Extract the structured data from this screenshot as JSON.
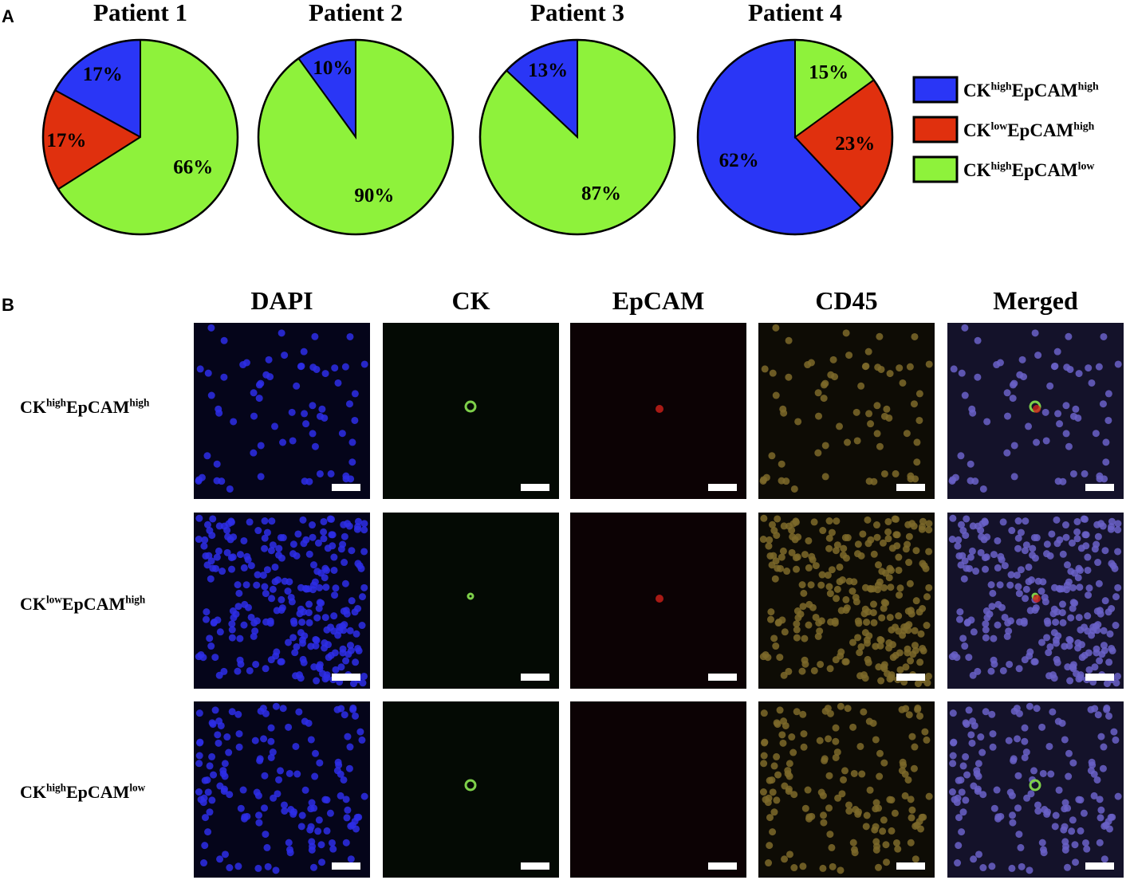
{
  "panel_a": {
    "label": "A"
  },
  "chart_data": [
    {
      "type": "pie",
      "title": "Patient 1",
      "values": [
        17,
        17,
        66
      ],
      "value_labels": [
        "17%",
        "17%",
        "66%"
      ]
    },
    {
      "type": "pie",
      "title": "Patient 2",
      "values": [
        10,
        null,
        90
      ],
      "value_labels": [
        "10%",
        null,
        "90%"
      ]
    },
    {
      "type": "pie",
      "title": "Patient 3",
      "values": [
        13,
        null,
        87
      ],
      "value_labels": [
        "13%",
        null,
        "87%"
      ]
    },
    {
      "type": "pie",
      "title": "Patient 4",
      "values": [
        62,
        23,
        15
      ],
      "value_labels": [
        "62%",
        "23%",
        "15%"
      ]
    }
  ],
  "legend": {
    "entries": [
      {
        "name": [
          "CK",
          "high",
          "EpCAM",
          "high"
        ],
        "color": "#2a36f6"
      },
      {
        "name": [
          "CK",
          "low",
          "EpCAM",
          "high"
        ],
        "color": "#e0300e"
      },
      {
        "name": [
          "CK",
          "high",
          "EpCAM",
          "low"
        ],
        "color": "#8ef23b"
      }
    ]
  },
  "panel_b": {
    "label": "B",
    "columns": [
      "DAPI",
      "CK",
      "EpCAM",
      "CD45",
      "Merged"
    ],
    "rows": [
      [
        "CK",
        "high",
        "EpCAM",
        "high"
      ],
      [
        "CK",
        "low",
        "EpCAM",
        "high"
      ],
      [
        "CK",
        "high",
        "EpCAM",
        "low"
      ]
    ]
  }
}
